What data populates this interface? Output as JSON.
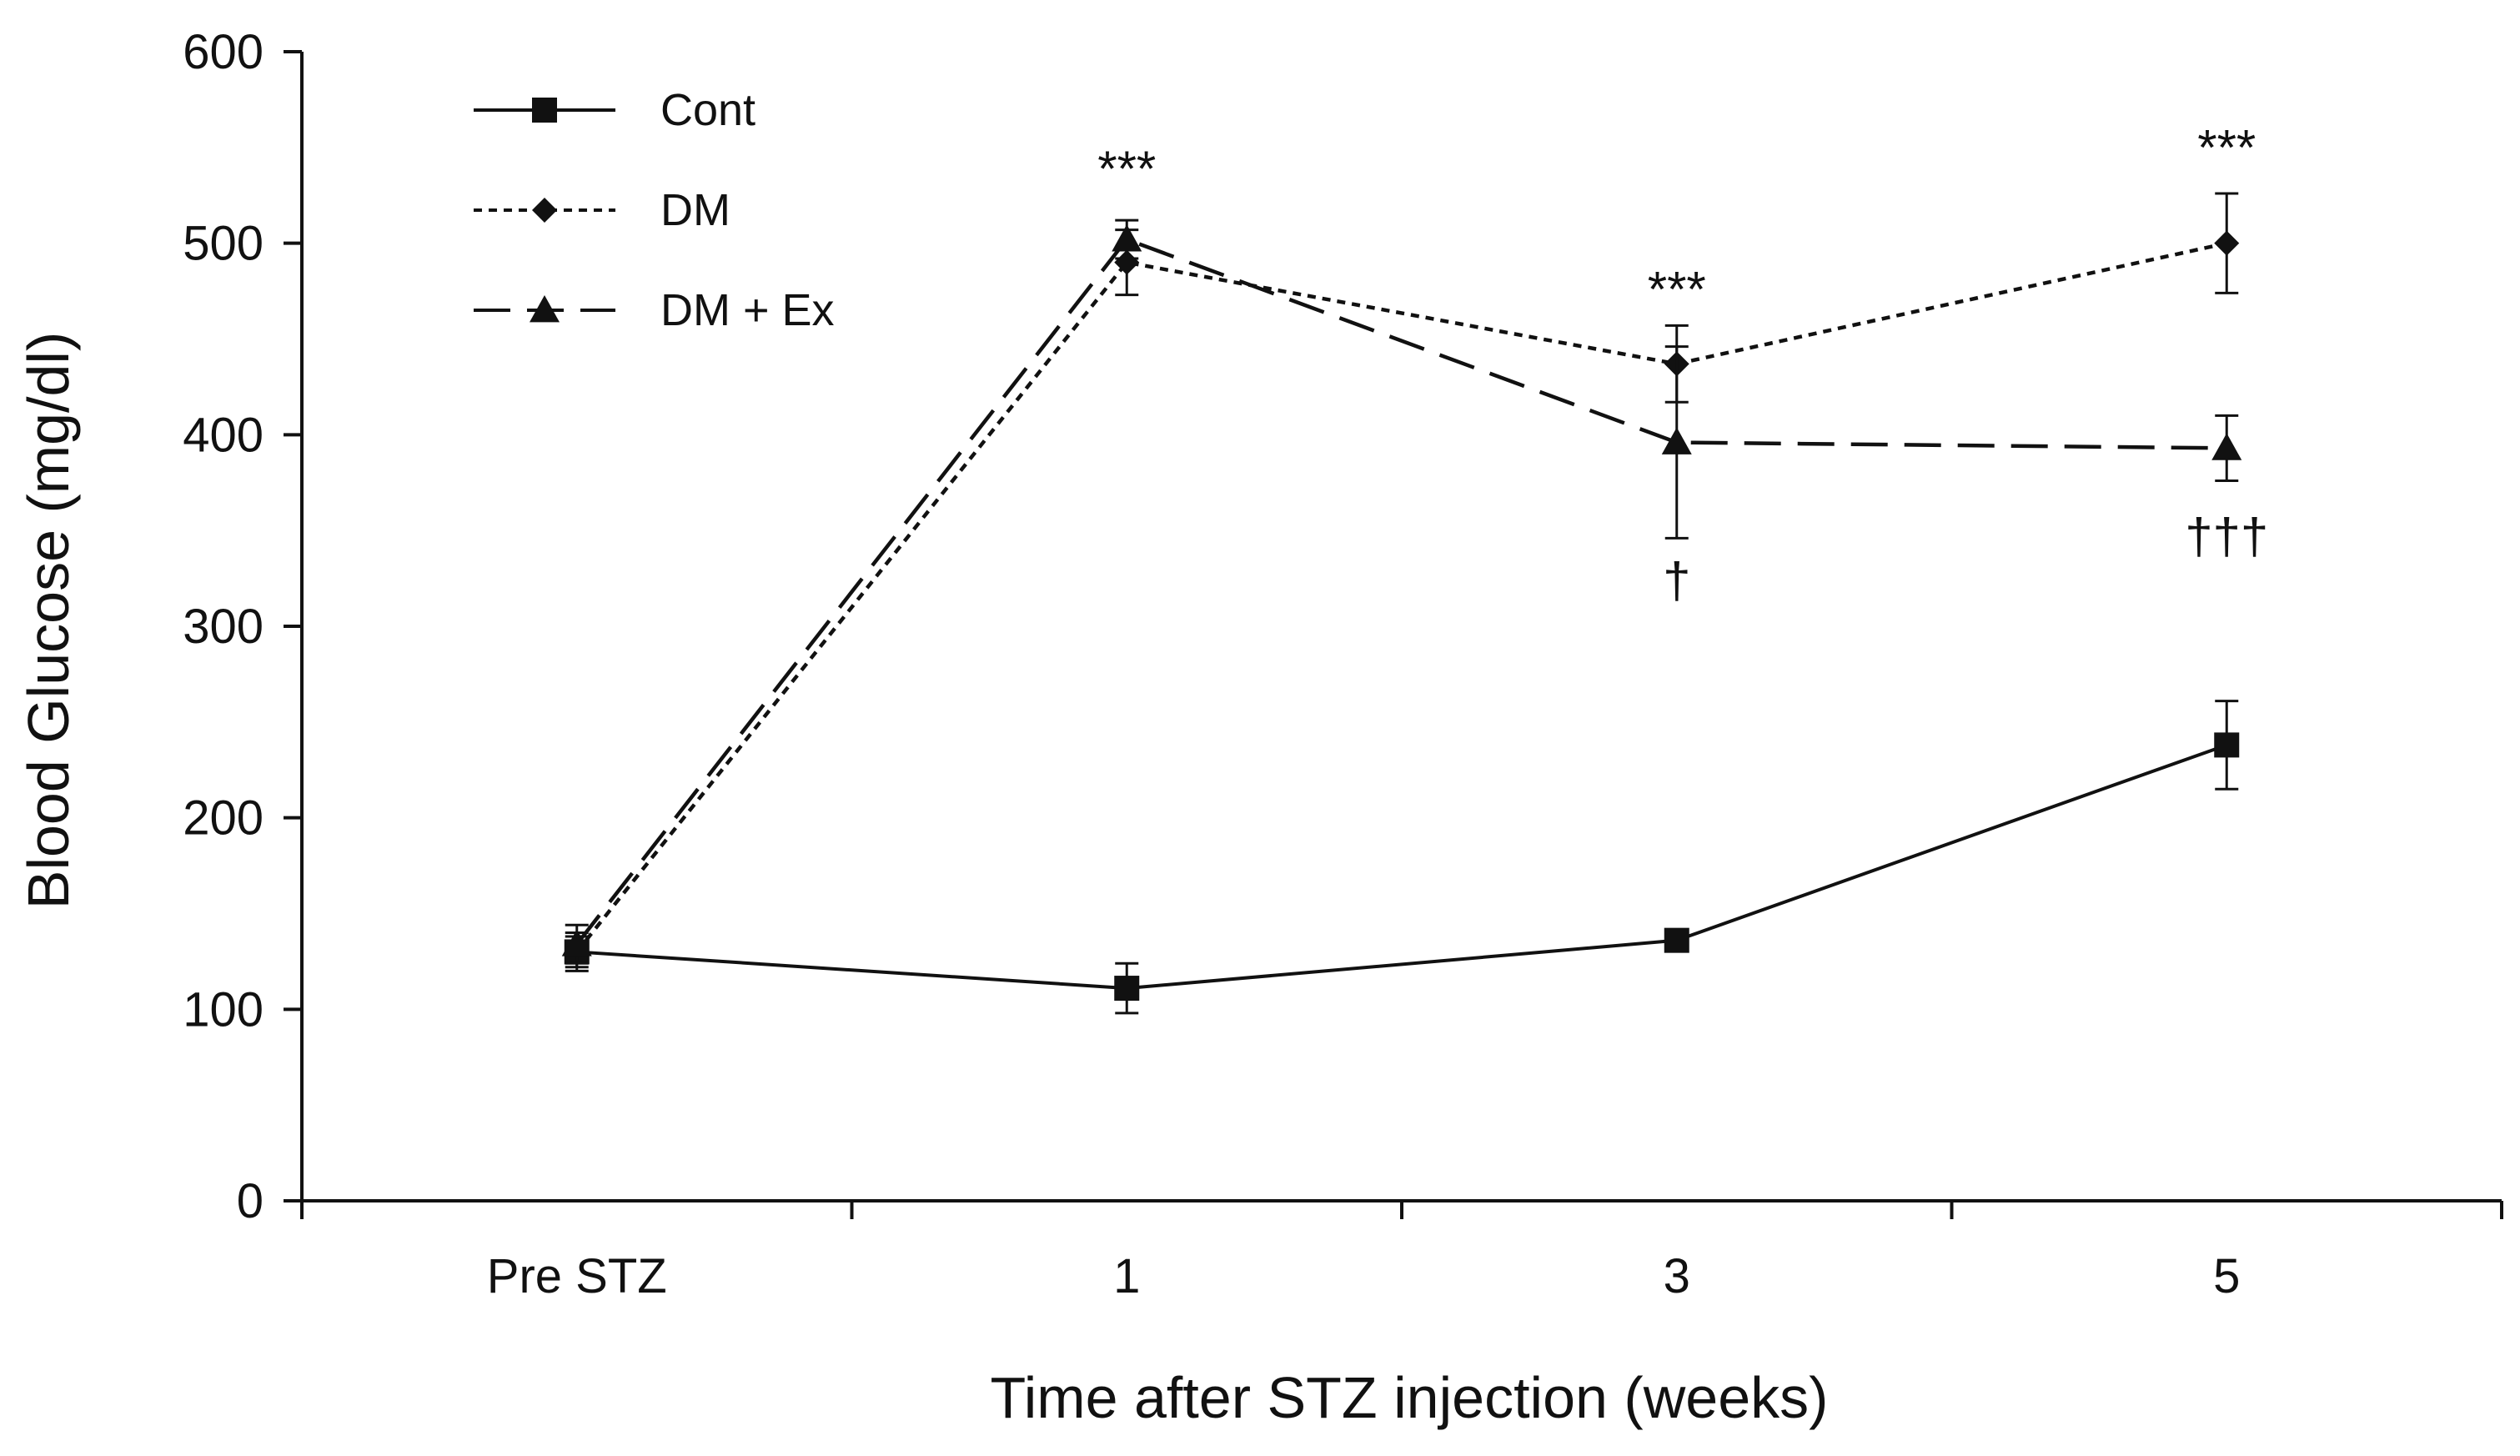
{
  "chart_data": {
    "type": "line",
    "title": "",
    "xlabel": "Time after STZ injection (weeks)",
    "ylabel": "Blood Glucose (mg/dl)",
    "categories": [
      "Pre STZ",
      "1",
      "3",
      "5"
    ],
    "ylim": [
      0,
      600
    ],
    "yticks": [
      0,
      100,
      200,
      300,
      400,
      500,
      600
    ],
    "grid": false,
    "legend_position": "top-left",
    "series": [
      {
        "name": "Cont",
        "marker": "square",
        "dash": "solid",
        "values": [
          130,
          111,
          136,
          238
        ],
        "errors": [
          10,
          13,
          4,
          23
        ]
      },
      {
        "name": "DM",
        "marker": "diamond",
        "dash": "dotted",
        "values": [
          130,
          490,
          437,
          500
        ],
        "errors": [
          8,
          17,
          20,
          26
        ]
      },
      {
        "name": "DM + Ex",
        "marker": "triangle",
        "dash": "dashed",
        "values": [
          134,
          502,
          396,
          393
        ],
        "errors": [
          10,
          10,
          50,
          17
        ]
      }
    ],
    "annotations": [
      {
        "text": "***",
        "category": "1",
        "y": 530
      },
      {
        "text": "***",
        "category": "3",
        "y": 467
      },
      {
        "text": "***",
        "category": "5",
        "y": 541
      },
      {
        "text": "†",
        "category": "3",
        "y": 315
      },
      {
        "text": "†††",
        "category": "5",
        "y": 338
      }
    ]
  }
}
